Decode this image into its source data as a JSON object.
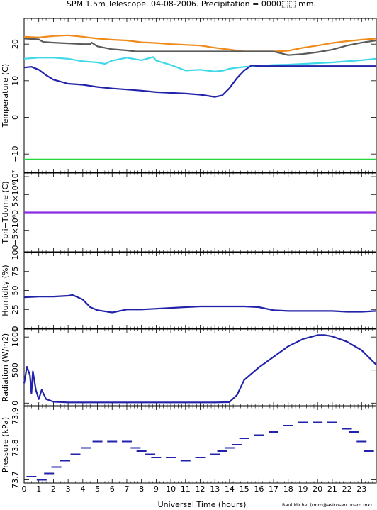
{
  "title": "SPM 1.5m Telescope. 04-08-2006. Precipitation = 0000⬚⬚ mm.",
  "credit": "Raul Michel (rmm@astrosen.unam.mx)",
  "xaxis": {
    "label": "Universal Time (hours)",
    "range": [
      0,
      24
    ],
    "ticks": [
      "0",
      "1",
      "2",
      "3",
      "4",
      "5",
      "6",
      "7",
      "8",
      "9",
      "10",
      "11",
      "12",
      "13",
      "14",
      "15",
      "16",
      "17",
      "18",
      "19",
      "20",
      "21",
      "22",
      "23"
    ]
  },
  "chart_data": [
    {
      "type": "line",
      "ylabel": "Temperature (C)",
      "ylim": [
        -15,
        27
      ],
      "yticks": [
        -10,
        0,
        10,
        20
      ],
      "ytick_labels": [
        "−10",
        "0",
        "10",
        "20"
      ],
      "series": [
        {
          "color": "#f08a1a",
          "x": [
            0,
            1,
            2,
            3,
            4,
            5,
            6,
            7,
            8,
            9,
            10,
            11,
            12,
            13,
            14,
            15,
            16,
            17,
            18,
            19,
            20,
            21,
            22,
            23,
            24
          ],
          "y": [
            22,
            21.8,
            22.2,
            22.4,
            22,
            21.5,
            21.2,
            21,
            20.5,
            20.3,
            20,
            19.8,
            19.6,
            19,
            18.5,
            18,
            18,
            18,
            18.2,
            19,
            19.6,
            20.3,
            20.8,
            21.2,
            21.5
          ]
        },
        {
          "color": "#5a5a5a",
          "x": [
            0,
            1,
            1.3,
            2,
            3,
            4,
            4.5,
            4.6,
            5,
            6,
            7,
            7.6,
            8,
            10,
            12,
            14,
            16,
            17,
            17.5,
            18,
            19,
            20,
            21,
            22,
            23,
            24
          ],
          "y": [
            21.5,
            21.3,
            20.6,
            20.4,
            20.2,
            20,
            20,
            20.4,
            19.4,
            18.6,
            18.3,
            18,
            18,
            18,
            18,
            18,
            18,
            18,
            17.5,
            17,
            17.3,
            17.8,
            18.5,
            19.6,
            20.4,
            21
          ]
        },
        {
          "color": "#3fd8e8",
          "x": [
            0,
            1,
            2,
            3,
            4,
            5,
            5.5,
            6,
            7,
            8,
            8.8,
            9,
            10,
            11,
            12,
            13,
            13.6,
            14,
            15,
            16,
            17,
            18,
            19,
            20,
            21,
            22,
            23,
            24
          ],
          "y": [
            16,
            16.3,
            16.3,
            16,
            15.3,
            15,
            14.6,
            15.5,
            16.3,
            15.6,
            16.5,
            15.5,
            14.3,
            12.8,
            13,
            12.5,
            12.8,
            13.3,
            13.8,
            14,
            14.3,
            14.4,
            14.6,
            14.8,
            15,
            15.3,
            15.6,
            16
          ]
        },
        {
          "color": "#2222aa",
          "x": [
            0,
            0.5,
            1,
            1.5,
            2,
            3,
            4,
            5,
            6,
            7,
            8,
            9,
            10,
            11,
            12,
            13,
            13.5,
            14,
            14.5,
            15,
            15.5,
            16,
            17,
            18,
            19,
            20,
            21,
            22,
            23,
            24
          ],
          "y": [
            13.6,
            13.8,
            13,
            11.5,
            10.3,
            9.2,
            8.9,
            8.3,
            7.9,
            7.6,
            7.3,
            6.9,
            6.7,
            6.5,
            6.2,
            5.6,
            6,
            8,
            10.7,
            12.8,
            14.2,
            14,
            14,
            14,
            14,
            14,
            14,
            14,
            14,
            14
          ]
        },
        {
          "color": "#22d83a",
          "x": [
            0,
            24
          ],
          "y": [
            -11.5,
            -11.5
          ]
        }
      ]
    },
    {
      "type": "line",
      "ylabel": "Tpri−Tdome (C)",
      "ylim": [
        -11000000,
        11000000
      ],
      "yticks": [
        -5000000,
        0,
        5000000,
        10000000
      ],
      "ytick_labels": [
        "−5×10⁶",
        "0",
        "5×10⁶",
        "10⁷"
      ],
      "series": [
        {
          "color": "#8a2be2",
          "x": [
            0,
            24
          ],
          "y": [
            0,
            0
          ]
        }
      ]
    },
    {
      "type": "line",
      "ylabel": "Humidity (%)",
      "ylim": [
        0,
        100
      ],
      "yticks": [
        0,
        25,
        50,
        75,
        100
      ],
      "ytick_labels": [
        "0",
        "25",
        "50",
        "75",
        "100"
      ],
      "series": [
        {
          "color": "#2222aa",
          "x": [
            0,
            1,
            2,
            3,
            3.3,
            4,
            4.5,
            5,
            6,
            7,
            8,
            9,
            10,
            11,
            12,
            13,
            14,
            15,
            16,
            17,
            18,
            19,
            20,
            21,
            22,
            23,
            24
          ],
          "y": [
            41,
            42,
            42,
            43,
            44,
            38,
            28,
            24,
            21,
            25,
            25,
            26,
            27,
            28,
            29,
            29,
            29,
            29,
            28,
            24,
            23,
            23,
            23,
            23,
            22,
            22,
            23
          ]
        }
      ]
    },
    {
      "type": "line",
      "ylabel": "Radiation (W/m2)",
      "ylim": [
        -40,
        1120
      ],
      "yticks": [
        0,
        500,
        1000
      ],
      "ytick_labels": [
        "0",
        "500",
        "1000"
      ],
      "series": [
        {
          "color": "#2222aa",
          "x": [
            0,
            0.2,
            0.4,
            0.5,
            0.6,
            0.8,
            1,
            1.2,
            1.5,
            2,
            3,
            4,
            6,
            8,
            10,
            12,
            13,
            14,
            14.2,
            14.5,
            15,
            16,
            17,
            18,
            19,
            20,
            20.5,
            21,
            22,
            23,
            24
          ],
          "y": [
            300,
            550,
            420,
            150,
            480,
            200,
            60,
            200,
            60,
            20,
            10,
            10,
            10,
            10,
            10,
            10,
            10,
            15,
            60,
            120,
            350,
            540,
            700,
            860,
            970,
            1030,
            1030,
            1010,
            930,
            800,
            580
          ]
        }
      ]
    },
    {
      "type": "scatter",
      "ylabel": "Pressure (kPa)",
      "ylim": [
        73.69,
        73.93
      ],
      "yticks": [
        73.7,
        73.8,
        73.9
      ],
      "ytick_labels": [
        "73.7",
        "73.8",
        "73.9"
      ],
      "series": [
        {
          "color": "#2222aa",
          "x": [
            0.5,
            1.2,
            1.7,
            2.2,
            2.8,
            3.5,
            4.2,
            5,
            6,
            7,
            7.6,
            8,
            8.6,
            9,
            10,
            11,
            12,
            13,
            13.5,
            14,
            14.5,
            15,
            16,
            17,
            18,
            19,
            20,
            21,
            22,
            22.5,
            23,
            23.5
          ],
          "y": [
            73.71,
            73.7,
            73.72,
            73.74,
            73.76,
            73.78,
            73.8,
            73.82,
            73.82,
            73.82,
            73.8,
            73.79,
            73.78,
            73.77,
            73.77,
            73.76,
            73.77,
            73.78,
            73.79,
            73.8,
            73.81,
            73.83,
            73.84,
            73.85,
            73.87,
            73.88,
            73.88,
            73.88,
            73.86,
            73.85,
            73.82,
            73.79
          ]
        }
      ]
    }
  ]
}
